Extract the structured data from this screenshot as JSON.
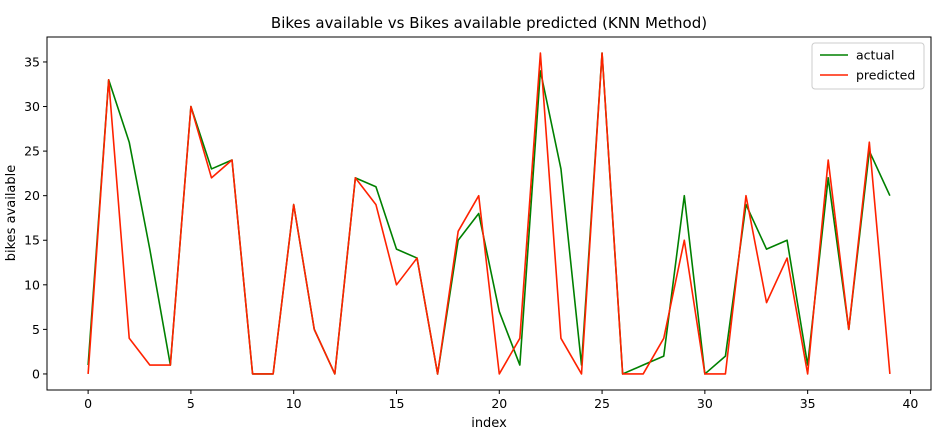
{
  "chart_data": {
    "type": "line",
    "title": "Bikes available vs Bikes available predicted (KNN Method)",
    "xlabel": "index",
    "ylabel": "bikes available",
    "xlim": [
      -2,
      41
    ],
    "ylim": [
      -1.8,
      37.8
    ],
    "xticks": [
      0,
      5,
      10,
      15,
      20,
      25,
      30,
      35,
      40
    ],
    "yticks": [
      0,
      5,
      10,
      15,
      20,
      25,
      30,
      35
    ],
    "grid": false,
    "legend_position": "top-right",
    "x": [
      0,
      1,
      2,
      3,
      4,
      5,
      6,
      7,
      8,
      9,
      10,
      11,
      12,
      13,
      14,
      15,
      16,
      17,
      18,
      19,
      20,
      21,
      22,
      23,
      24,
      25,
      26,
      27,
      28,
      29,
      30,
      31,
      32,
      33,
      34,
      35,
      36,
      37,
      38,
      39
    ],
    "series": [
      {
        "name": "actual",
        "color": "#008000",
        "values": [
          1,
          33,
          26,
          14,
          1,
          30,
          23,
          24,
          0,
          0,
          19,
          5,
          0,
          22,
          21,
          14,
          13,
          0,
          15,
          18,
          7,
          1,
          34,
          23,
          1,
          36,
          0,
          1,
          2,
          20,
          0,
          2,
          19,
          14,
          15,
          1,
          22,
          5,
          25,
          20
        ]
      },
      {
        "name": "predicted",
        "color": "#ff2200",
        "values": [
          0,
          33,
          4,
          1,
          1,
          30,
          22,
          24,
          0,
          0,
          19,
          5,
          0,
          22,
          19,
          10,
          13,
          0,
          16,
          20,
          0,
          4,
          36,
          4,
          0,
          36,
          0,
          0,
          4,
          15,
          0,
          0,
          20,
          8,
          13,
          0,
          24,
          5,
          26,
          0
        ]
      }
    ]
  }
}
